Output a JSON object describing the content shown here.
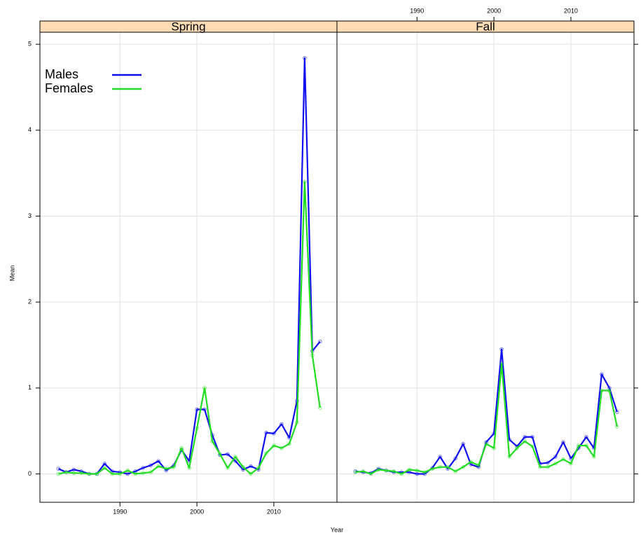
{
  "chart_data": [
    {
      "type": "line",
      "title": "Spring",
      "x_label": "Year",
      "y_label": "Mean",
      "x": [
        1982,
        1983,
        1984,
        1985,
        1986,
        1987,
        1988,
        1989,
        1990,
        1991,
        1992,
        1993,
        1994,
        1995,
        1996,
        1997,
        1998,
        1999,
        2000,
        2001,
        2002,
        2003,
        2004,
        2005,
        2006,
        2007,
        2008,
        2009,
        2010,
        2011,
        2012,
        2013,
        2014,
        2015,
        2016
      ],
      "series": [
        {
          "name": "Males",
          "color": "#1010f0",
          "values": [
            0.06,
            0.02,
            0.05,
            0.03,
            0.0,
            0.0,
            0.12,
            0.03,
            0.02,
            0.0,
            0.03,
            0.07,
            0.1,
            0.15,
            0.04,
            0.1,
            0.28,
            0.15,
            0.75,
            0.75,
            0.45,
            0.22,
            0.23,
            0.15,
            0.05,
            0.09,
            0.05,
            0.48,
            0.47,
            0.58,
            0.42,
            0.85,
            4.84,
            1.43,
            1.54
          ]
        },
        {
          "name": "Females",
          "color": "#22dd22",
          "values": [
            0.0,
            0.02,
            0.01,
            0.01,
            0.0,
            0.0,
            0.07,
            0.0,
            0.0,
            0.04,
            0.0,
            0.01,
            0.02,
            0.09,
            0.06,
            0.08,
            0.3,
            0.07,
            0.53,
            1.0,
            0.38,
            0.23,
            0.07,
            0.2,
            0.08,
            0.0,
            0.07,
            0.24,
            0.33,
            0.3,
            0.35,
            0.6,
            3.4,
            1.38,
            0.77
          ]
        }
      ],
      "xlim": [
        1979.6,
        2018.2
      ],
      "xticks": [
        1990,
        2000,
        2010
      ],
      "ylim": [
        -0.33,
        5.14
      ],
      "yticks": [
        0,
        1,
        2,
        3,
        4,
        5
      ],
      "grid": true,
      "legend": "top-left"
    },
    {
      "type": "line",
      "title": "Fall",
      "x": [
        1982,
        1983,
        1984,
        1985,
        1986,
        1987,
        1988,
        1989,
        1990,
        1991,
        1992,
        1993,
        1994,
        1995,
        1996,
        1997,
        1998,
        1999,
        2000,
        2001,
        2002,
        2003,
        2004,
        2005,
        2006,
        2007,
        2008,
        2009,
        2010,
        2011,
        2012,
        2013,
        2014,
        2015,
        2016
      ],
      "series": [
        {
          "color": "#1010f0",
          "values": [
            0.03,
            0.02,
            0.01,
            0.06,
            0.04,
            0.02,
            0.02,
            0.02,
            0.0,
            0.0,
            0.07,
            0.2,
            0.06,
            0.18,
            0.35,
            0.11,
            0.08,
            0.37,
            0.47,
            1.45,
            0.4,
            0.32,
            0.43,
            0.43,
            0.12,
            0.13,
            0.2,
            0.37,
            0.18,
            0.3,
            0.43,
            0.3,
            1.16,
            1.0,
            0.72
          ]
        },
        {
          "color": "#22dd22",
          "values": [
            0.02,
            0.03,
            0.0,
            0.05,
            0.04,
            0.03,
            0.0,
            0.05,
            0.04,
            0.02,
            0.06,
            0.08,
            0.08,
            0.03,
            0.08,
            0.14,
            0.1,
            0.35,
            0.3,
            1.28,
            0.2,
            0.3,
            0.38,
            0.32,
            0.08,
            0.08,
            0.12,
            0.17,
            0.12,
            0.33,
            0.33,
            0.2,
            0.97,
            0.97,
            0.55
          ]
        }
      ],
      "xlim": [
        1979.6,
        2018.2
      ],
      "xticks": [
        1990,
        2000,
        2010
      ],
      "ylim": [
        -0.33,
        5.14
      ],
      "yticks": [
        0,
        1,
        2,
        3,
        4,
        5
      ],
      "grid": true
    }
  ]
}
